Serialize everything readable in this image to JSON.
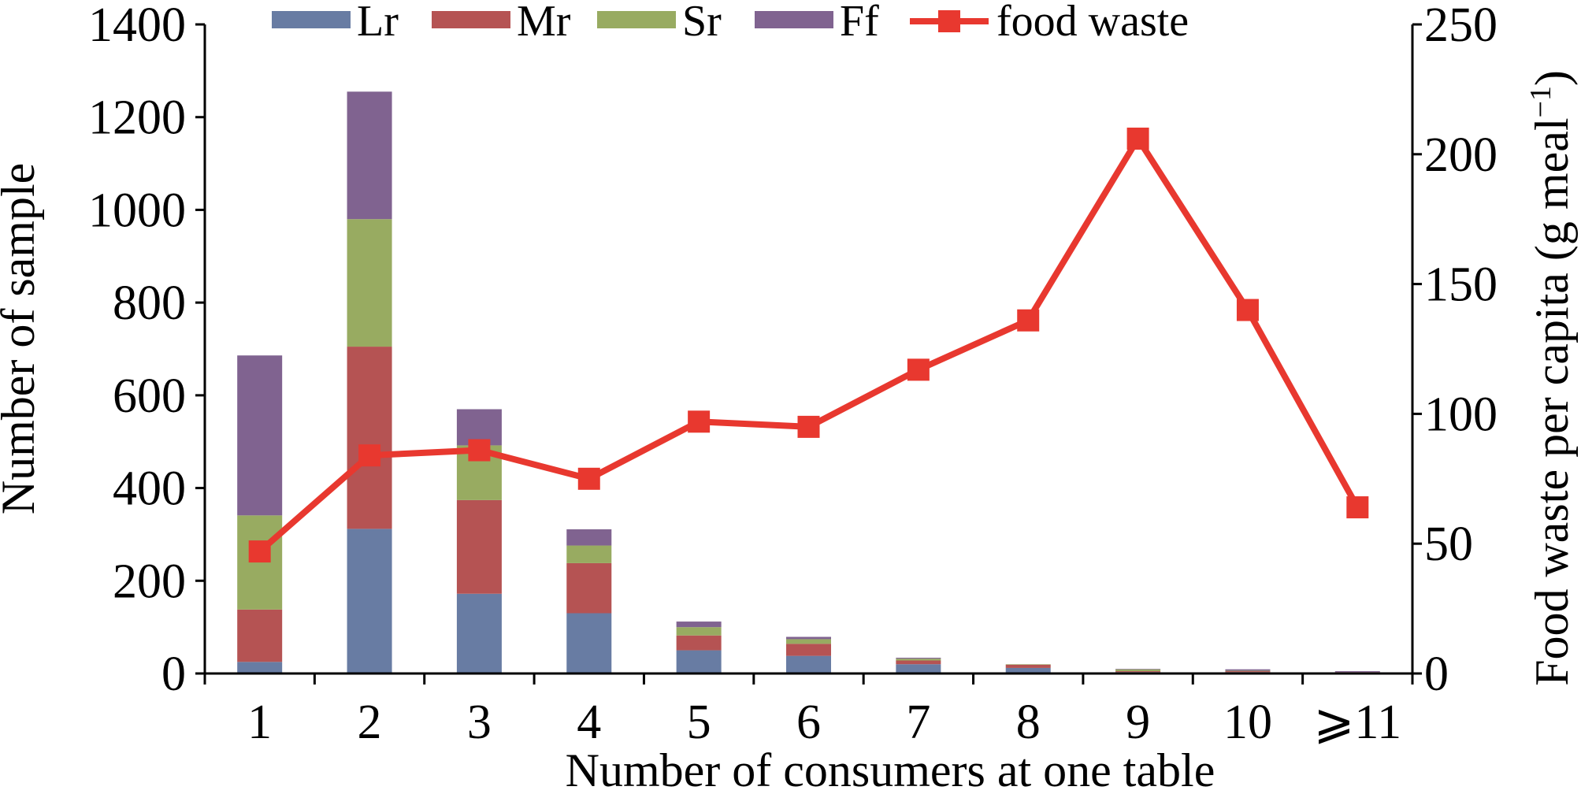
{
  "chart_data": {
    "type": "bar",
    "stacked": true,
    "categories": [
      "1",
      "2",
      "3",
      "4",
      "5",
      "6",
      "7",
      "8",
      "9",
      "10",
      "⩾11"
    ],
    "xlabel": "Number of consumers at one table",
    "ylabel": "Number of sample",
    "y2label": "Food waste per capita (g meal",
    "y2label_sup": "−1",
    "y2label_close": ")",
    "ylim": [
      0,
      1400
    ],
    "yticks": [
      0,
      200,
      400,
      600,
      800,
      1000,
      1200,
      1400
    ],
    "ylim2": [
      0,
      250
    ],
    "y2ticks": [
      0,
      50,
      100,
      150,
      200,
      250
    ],
    "grid": false,
    "legend_position": "top",
    "series": [
      {
        "name": "Lr",
        "color": "#687ca3",
        "values": [
          25,
          312,
          172,
          130,
          50,
          38,
          20,
          12,
          3,
          3,
          2
        ]
      },
      {
        "name": "Mr",
        "color": "#b55353",
        "values": [
          113,
          393,
          202,
          108,
          32,
          26,
          8,
          7,
          2,
          2,
          1
        ]
      },
      {
        "name": "Sr",
        "color": "#98ab61",
        "values": [
          203,
          275,
          118,
          38,
          18,
          10,
          4,
          1,
          4,
          1,
          0
        ]
      },
      {
        "name": "Ff",
        "color": "#806390",
        "values": [
          345,
          275,
          78,
          35,
          12,
          5,
          2,
          0,
          1,
          3,
          2
        ]
      }
    ],
    "line_series": {
      "name": "food waste",
      "color": "#e8382f",
      "axis": "right",
      "values": [
        47,
        84,
        86,
        75,
        97,
        95,
        117,
        136,
        206,
        140,
        64
      ]
    }
  }
}
